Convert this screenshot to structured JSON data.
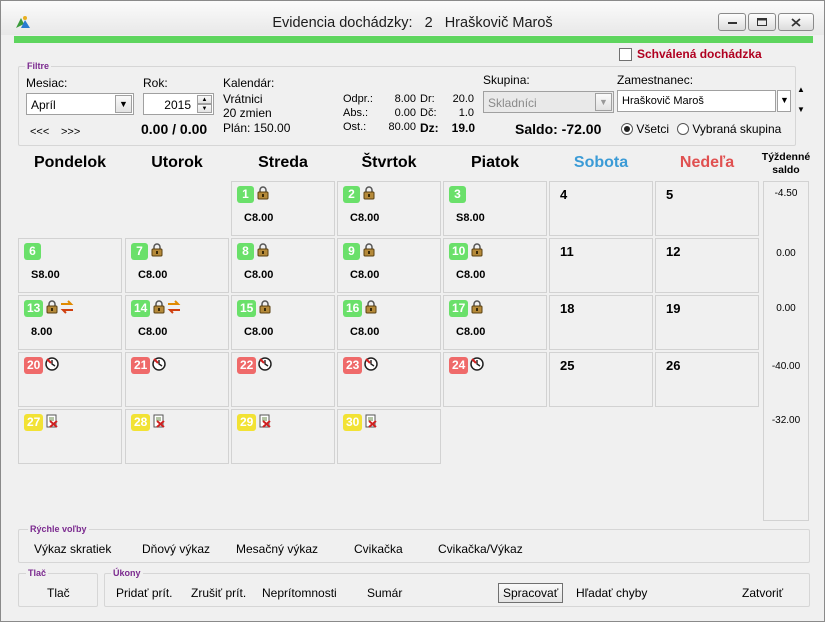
{
  "window": {
    "title_prefix": "Evidencia dochádzky:",
    "employee_id": "2",
    "employee_name": "Hraškovič Maroš"
  },
  "approved_label": "Schválená dochádzka",
  "filters": {
    "group_label": "Filtre",
    "month_label": "Mesiac:",
    "month_value": "Apríl",
    "year_label": "Rok:",
    "year_value": "2015",
    "nav_prev": "<<<",
    "nav_next": ">>>",
    "totals": "0.00 / 0.00",
    "calendar_label": "Kalendár:",
    "calendar_name": "Vrátnici",
    "calendar_shifts": "20 zmien",
    "calendar_plan": "Plán: 150.00",
    "stats": {
      "odpr_label": "Odpr.:",
      "odpr_value": "8.00",
      "abs_label": "Abs.:",
      "abs_value": "0.00",
      "ost_label": "Ost.:",
      "ost_value": "80.00",
      "dr_label": "Dr:",
      "dr_value": "20.0",
      "dc_label": "Dč:",
      "dc_value": "1.0",
      "dz_label": "Dz:",
      "dz_value": "19.0"
    },
    "group_sel_label": "Skupina:",
    "group_sel_value": "Skladníci",
    "employee_label": "Zamestnanec:",
    "employee_value": "Hraškovič Maroš",
    "saldo": "Saldo: -72.00",
    "radio_all": "Všetci",
    "radio_group": "Vybraná skupina"
  },
  "days": {
    "mon": "Pondelok",
    "tue": "Utorok",
    "wed": "Streda",
    "thu": "Štvrtok",
    "fri": "Piatok",
    "sat": "Sobota",
    "sun": "Nedeľa",
    "saldo": "Týždenné saldo"
  },
  "colors": {
    "saturday": "#3b9bd6",
    "sunday": "#e05050",
    "filter_label": "#7b2a8f"
  },
  "weekly_saldo": [
    "-4.50",
    "0.00",
    "0.00",
    "-40.00",
    "-32.00"
  ],
  "calendar_cells": [
    {
      "day": "1",
      "badge": "green",
      "icons": [
        "lock-icon"
      ],
      "shift": "C8.00"
    },
    {
      "day": "2",
      "badge": "green",
      "icons": [
        "lock-icon"
      ],
      "shift": "C8.00"
    },
    {
      "day": "3",
      "badge": "green",
      "icons": [],
      "shift": "S8.00"
    },
    {
      "day": "4",
      "badge": "none",
      "icons": [],
      "shift": ""
    },
    {
      "day": "5",
      "badge": "none",
      "icons": [],
      "shift": ""
    },
    {
      "day": "6",
      "badge": "green",
      "icons": [],
      "shift": "S8.00"
    },
    {
      "day": "7",
      "badge": "green",
      "icons": [
        "lock-icon"
      ],
      "shift": "C8.00"
    },
    {
      "day": "8",
      "badge": "green",
      "icons": [
        "lock-icon"
      ],
      "shift": "C8.00"
    },
    {
      "day": "9",
      "badge": "green",
      "icons": [
        "lock-icon"
      ],
      "shift": "C8.00"
    },
    {
      "day": "10",
      "badge": "green",
      "icons": [
        "lock-icon"
      ],
      "shift": "C8.00"
    },
    {
      "day": "11",
      "badge": "none",
      "icons": [],
      "shift": ""
    },
    {
      "day": "12",
      "badge": "none",
      "icons": [],
      "shift": ""
    },
    {
      "day": "13",
      "badge": "green",
      "icons": [
        "lock-icon",
        "swap-icon"
      ],
      "shift": "8.00"
    },
    {
      "day": "14",
      "badge": "green",
      "icons": [
        "lock-icon",
        "swap-icon"
      ],
      "shift": "C8.00"
    },
    {
      "day": "15",
      "badge": "green",
      "icons": [
        "lock-icon"
      ],
      "shift": "C8.00"
    },
    {
      "day": "16",
      "badge": "green",
      "icons": [
        "lock-icon"
      ],
      "shift": "C8.00"
    },
    {
      "day": "17",
      "badge": "green",
      "icons": [
        "lock-icon"
      ],
      "shift": "C8.00"
    },
    {
      "day": "18",
      "badge": "none",
      "icons": [],
      "shift": ""
    },
    {
      "day": "19",
      "badge": "none",
      "icons": [],
      "shift": ""
    },
    {
      "day": "20",
      "badge": "red",
      "icons": [
        "clock-icon"
      ],
      "shift": ""
    },
    {
      "day": "21",
      "badge": "red",
      "icons": [
        "clock-icon"
      ],
      "shift": ""
    },
    {
      "day": "22",
      "badge": "red",
      "icons": [
        "clock-icon"
      ],
      "shift": ""
    },
    {
      "day": "23",
      "badge": "red",
      "icons": [
        "clock-icon"
      ],
      "shift": ""
    },
    {
      "day": "24",
      "badge": "red",
      "icons": [
        "clock-icon"
      ],
      "shift": ""
    },
    {
      "day": "25",
      "badge": "none",
      "icons": [],
      "shift": ""
    },
    {
      "day": "26",
      "badge": "none",
      "icons": [],
      "shift": ""
    },
    {
      "day": "27",
      "badge": "yellow",
      "icons": [
        "notepad-x-icon"
      ],
      "shift": ""
    },
    {
      "day": "28",
      "badge": "yellow",
      "icons": [
        "notepad-x-icon"
      ],
      "shift": ""
    },
    {
      "day": "29",
      "badge": "yellow",
      "icons": [
        "notepad-x-icon"
      ],
      "shift": ""
    },
    {
      "day": "30",
      "badge": "yellow",
      "icons": [
        "notepad-x-icon"
      ],
      "shift": ""
    }
  ],
  "quick": {
    "group_label": "Rýchle voľby",
    "items": [
      "Výkaz skratiek",
      "Dňový výkaz",
      "Mesačný výkaz",
      "Cvikačka",
      "Cvikačka/Výkaz"
    ]
  },
  "print": {
    "group_label": "Tlač",
    "button": "Tlač"
  },
  "actions": {
    "group_label": "Úkony",
    "add": "Pridať prít.",
    "cancel": "Zrušiť prít.",
    "absence": "Neprítomnosti",
    "summary": "Sumár",
    "process": "Spracovať",
    "find_errors": "Hľadať chyby",
    "close": "Zatvoriť"
  }
}
